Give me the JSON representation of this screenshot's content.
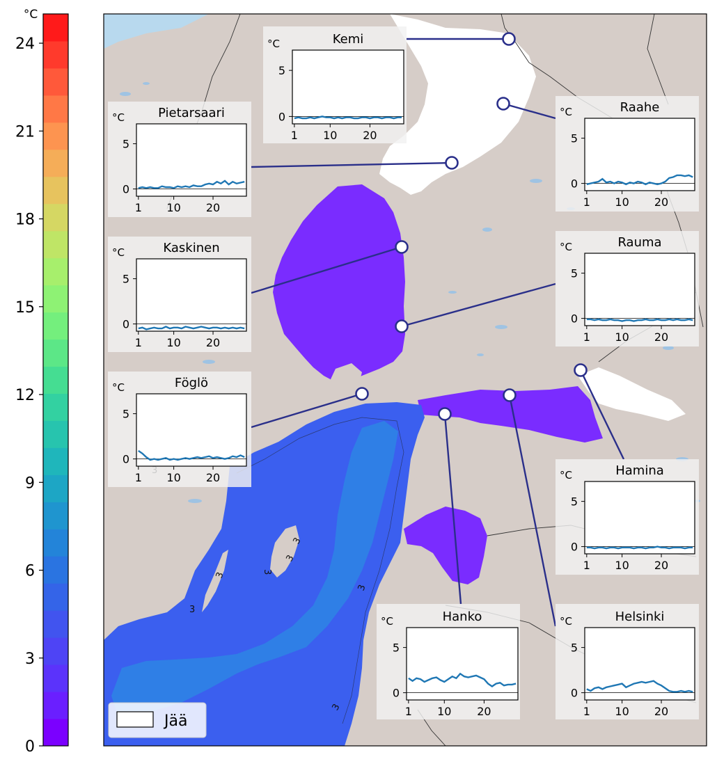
{
  "colorbar": {
    "unit": "°C",
    "ticks": [
      "0",
      "3",
      "6",
      "9",
      "12",
      "15",
      "18",
      "21",
      "24"
    ],
    "colors": [
      "#7b00ff",
      "#6a1fff",
      "#5b33fb",
      "#4e44f5",
      "#4154ef",
      "#3464e8",
      "#2a74e1",
      "#2384d9",
      "#1f95cf",
      "#1da6c5",
      "#1fb6bb",
      "#27c4ae",
      "#33d1a1",
      "#45dd92",
      "#5ce787",
      "#74ef7d",
      "#8ef274",
      "#a7ef6c",
      "#bfe566",
      "#d5d763",
      "#e7c35e",
      "#f5ad58",
      "#fd9450",
      "#ff7846",
      "#ff593a",
      "#ff3a2c",
      "#ff1a1a"
    ]
  },
  "map": {
    "legend_label": "Jää",
    "contour_label": "3",
    "colors": {
      "land": "#d6cdc8",
      "sea_bg": "#b8d9ee",
      "ice": "#ffffff",
      "sst_violet": "#7a2cff",
      "sst_blue": "#3b5fef",
      "sst_lightblue": "#2f7fe6",
      "connector": "#2a2f8a"
    }
  },
  "stations": [
    {
      "name": "Kemi",
      "series": [
        -0.2,
        -0.1,
        -0.2,
        -0.2,
        -0.1,
        -0.2,
        -0.1,
        0.0,
        -0.1,
        -0.1,
        -0.2,
        -0.1,
        -0.2,
        -0.1,
        -0.1,
        -0.2,
        -0.2,
        -0.1,
        -0.1,
        -0.2,
        -0.1,
        -0.1,
        -0.2,
        -0.1,
        -0.1,
        -0.2,
        -0.1,
        -0.1
      ]
    },
    {
      "name": "Raahe",
      "series": [
        -0.1,
        0.0,
        0.1,
        0.2,
        0.5,
        0.1,
        0.2,
        0.0,
        0.2,
        0.1,
        -0.1,
        0.1,
        0.0,
        0.2,
        0.1,
        -0.1,
        0.1,
        0.0,
        -0.1,
        0.0,
        0.2,
        0.6,
        0.7,
        0.9,
        0.9,
        0.8,
        0.9,
        0.7
      ]
    },
    {
      "name": "Pietarsaari",
      "series": [
        0.1,
        0.2,
        0.1,
        0.2,
        0.1,
        0.1,
        0.3,
        0.2,
        0.2,
        0.1,
        0.3,
        0.2,
        0.3,
        0.2,
        0.4,
        0.3,
        0.3,
        0.5,
        0.6,
        0.5,
        0.8,
        0.6,
        0.9,
        0.5,
        0.8,
        0.6,
        0.7,
        0.8
      ]
    },
    {
      "name": "Rauma",
      "series": [
        -0.1,
        -0.1,
        -0.2,
        -0.1,
        -0.2,
        -0.2,
        -0.1,
        -0.2,
        -0.2,
        -0.3,
        -0.2,
        -0.2,
        -0.3,
        -0.2,
        -0.2,
        -0.1,
        -0.2,
        -0.2,
        -0.1,
        -0.2,
        -0.2,
        -0.1,
        -0.2,
        -0.1,
        -0.2,
        -0.2,
        -0.1,
        -0.2
      ]
    },
    {
      "name": "Kaskinen",
      "series": [
        -0.5,
        -0.4,
        -0.6,
        -0.5,
        -0.4,
        -0.5,
        -0.5,
        -0.3,
        -0.5,
        -0.4,
        -0.4,
        -0.5,
        -0.3,
        -0.4,
        -0.5,
        -0.4,
        -0.3,
        -0.4,
        -0.5,
        -0.4,
        -0.4,
        -0.5,
        -0.4,
        -0.5,
        -0.4,
        -0.5,
        -0.4,
        -0.5
      ]
    },
    {
      "name": "Föglö",
      "series": [
        0.9,
        0.6,
        0.2,
        -0.1,
        0.0,
        -0.1,
        0.0,
        0.1,
        -0.1,
        0.0,
        -0.1,
        0.0,
        0.1,
        0.0,
        0.1,
        0.2,
        0.1,
        0.2,
        0.3,
        0.1,
        0.2,
        0.1,
        0.0,
        0.1,
        0.3,
        0.2,
        0.4,
        0.2
      ]
    },
    {
      "name": "Hamina",
      "series": [
        -0.1,
        -0.1,
        -0.2,
        -0.1,
        -0.1,
        -0.2,
        -0.1,
        -0.1,
        -0.2,
        -0.1,
        -0.1,
        -0.1,
        -0.2,
        -0.1,
        -0.1,
        -0.2,
        -0.1,
        -0.1,
        0.0,
        -0.1,
        -0.1,
        -0.2,
        -0.1,
        -0.1,
        -0.1,
        -0.2,
        -0.1,
        -0.1
      ]
    },
    {
      "name": "Hanko",
      "series": [
        1.6,
        1.3,
        1.6,
        1.5,
        1.2,
        1.4,
        1.6,
        1.7,
        1.4,
        1.2,
        1.5,
        1.8,
        1.6,
        2.1,
        1.8,
        1.7,
        1.8,
        1.9,
        1.7,
        1.5,
        1.0,
        0.7,
        1.0,
        1.1,
        0.8,
        0.9,
        0.9,
        1.0
      ]
    },
    {
      "name": "Helsinki",
      "series": [
        0.4,
        0.2,
        0.5,
        0.6,
        0.4,
        0.6,
        0.7,
        0.8,
        0.9,
        1.0,
        0.6,
        0.8,
        1.0,
        1.1,
        1.2,
        1.1,
        1.2,
        1.3,
        1.0,
        0.8,
        0.5,
        0.2,
        0.1,
        0.1,
        0.2,
        0.1,
        0.2,
        0.1
      ]
    }
  ],
  "inset_axes": {
    "unit": "°C",
    "y_ticks": [
      "0",
      "5"
    ],
    "x_ticks": [
      "1",
      "10",
      "20"
    ],
    "ylim": [
      -0.8,
      7.2
    ],
    "xlim": [
      0.5,
      28.5
    ]
  }
}
